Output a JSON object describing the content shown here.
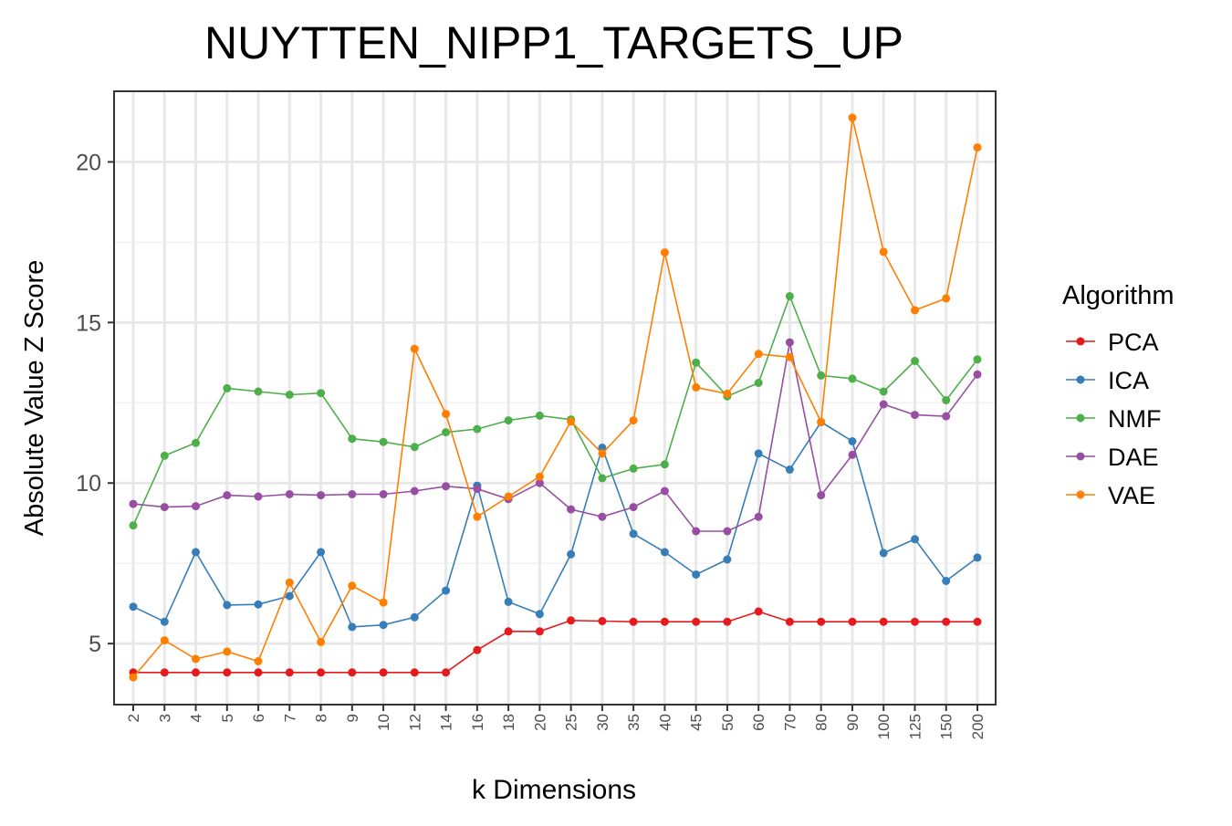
{
  "chart_data": {
    "type": "line",
    "title": "NUYTTEN_NIPP1_TARGETS_UP",
    "xlabel": "k Dimensions",
    "ylabel": "Absolute Value Z Score",
    "categories": [
      "2",
      "3",
      "4",
      "5",
      "6",
      "7",
      "8",
      "9",
      "10",
      "12",
      "14",
      "16",
      "18",
      "20",
      "25",
      "30",
      "35",
      "40",
      "45",
      "50",
      "60",
      "70",
      "80",
      "90",
      "100",
      "125",
      "150",
      "200"
    ],
    "ylim": [
      3.1,
      22.2
    ],
    "yticks": [
      5,
      10,
      15,
      20
    ],
    "grid": true,
    "legend": {
      "title": "Algorithm",
      "position": "right"
    },
    "series": [
      {
        "name": "PCA",
        "color": "#e41a1c",
        "values": [
          4.1,
          4.1,
          4.1,
          4.1,
          4.1,
          4.1,
          4.1,
          4.1,
          4.1,
          4.1,
          4.1,
          4.8,
          5.38,
          5.38,
          5.72,
          5.7,
          5.68,
          5.68,
          5.68,
          5.68,
          6.0,
          5.68,
          5.68,
          5.68,
          5.68,
          5.68,
          5.68,
          5.68
        ]
      },
      {
        "name": "ICA",
        "color": "#377eb8",
        "values": [
          6.15,
          5.68,
          7.85,
          6.2,
          6.22,
          6.48,
          7.85,
          5.52,
          5.58,
          5.82,
          6.65,
          9.92,
          6.3,
          5.92,
          7.78,
          11.1,
          8.42,
          7.85,
          7.15,
          7.62,
          10.92,
          10.42,
          11.9,
          11.3,
          7.82,
          8.25,
          6.95,
          7.68
        ]
      },
      {
        "name": "NMF",
        "color": "#4daf4a",
        "values": [
          8.68,
          10.85,
          11.25,
          12.95,
          12.85,
          12.75,
          12.8,
          11.38,
          11.28,
          11.12,
          11.58,
          11.68,
          11.95,
          12.1,
          11.98,
          10.15,
          10.45,
          10.58,
          13.75,
          12.7,
          13.12,
          15.82,
          13.35,
          13.25,
          12.85,
          13.8,
          12.58,
          13.85
        ]
      },
      {
        "name": "DAE",
        "color": "#984ea3",
        "values": [
          9.35,
          9.25,
          9.28,
          9.62,
          9.58,
          9.65,
          9.62,
          9.65,
          9.65,
          9.75,
          9.9,
          9.82,
          9.5,
          10.0,
          9.18,
          8.95,
          9.25,
          9.75,
          8.5,
          8.5,
          8.95,
          14.38,
          9.62,
          10.88,
          12.45,
          12.12,
          12.08,
          13.38
        ]
      },
      {
        "name": "VAE",
        "color": "#ff7f00",
        "values": [
          3.95,
          5.1,
          4.52,
          4.75,
          4.45,
          6.9,
          5.05,
          6.8,
          6.28,
          14.18,
          12.15,
          8.95,
          9.58,
          10.2,
          11.92,
          10.92,
          11.95,
          17.18,
          12.98,
          12.78,
          14.02,
          13.92,
          11.9,
          21.38,
          17.2,
          15.38,
          15.75,
          20.45
        ]
      }
    ]
  }
}
